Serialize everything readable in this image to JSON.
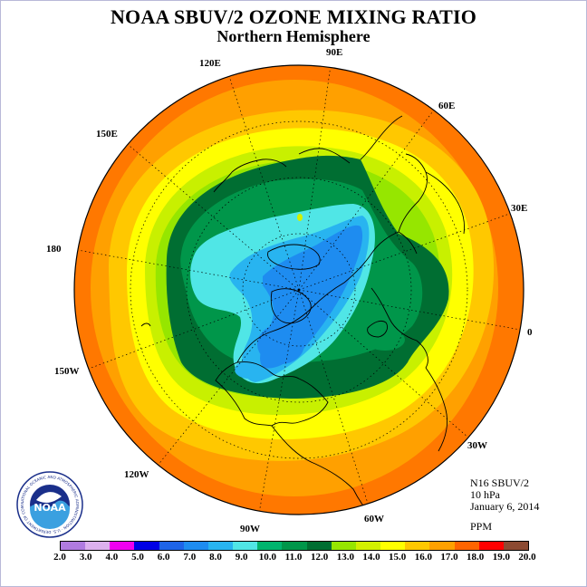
{
  "title": "NOAA SBUV/2 OZONE MIXING RATIO",
  "subtitle": "Northern Hemisphere",
  "info": {
    "satellite": "N16 SBUV/2",
    "level": "10 hPa",
    "date": "January 6, 2014",
    "units": "PPM"
  },
  "logo": {
    "text": "NOAA",
    "ring_text": "NATIONAL OCEANIC AND ATMOSPHERIC ADMINISTRATION · U.S. DEPARTMENT OF COMMERCE"
  },
  "longitude_labels": [
    "90E",
    "60E",
    "30E",
    "0",
    "30W",
    "60W",
    "90W",
    "120W",
    "150W",
    "180",
    "150E",
    "120E"
  ],
  "colorbar": {
    "ticks": [
      "2.0",
      "3.0",
      "4.0",
      "5.0",
      "6.0",
      "7.0",
      "8.0",
      "9.0",
      "10.0",
      "11.0",
      "12.0",
      "13.0",
      "14.0",
      "15.0",
      "16.0",
      "17.0",
      "18.0",
      "19.0",
      "20.0"
    ],
    "colors": [
      "#b07be0",
      "#dcb0ee",
      "#f000f0",
      "#0000e6",
      "#1e64e8",
      "#1e8cf0",
      "#28b4f0",
      "#50e6e6",
      "#00b46e",
      "#00964a",
      "#006e32",
      "#96e600",
      "#d2f000",
      "#ffff00",
      "#ffc800",
      "#ffa000",
      "#ff6400",
      "#ff0000",
      "#8c4a32"
    ]
  },
  "map_colors": {
    "outer": "#ff7800",
    "band17": "#ffa000",
    "band16": "#ffc800",
    "band15": "#ffff00",
    "band14": "#c8f000",
    "band13": "#96e600",
    "band12": "#006e32",
    "band11": "#00964a",
    "band10": "#50e6e6",
    "band9": "#28b4f0",
    "band8": "#1e8cf0"
  }
}
